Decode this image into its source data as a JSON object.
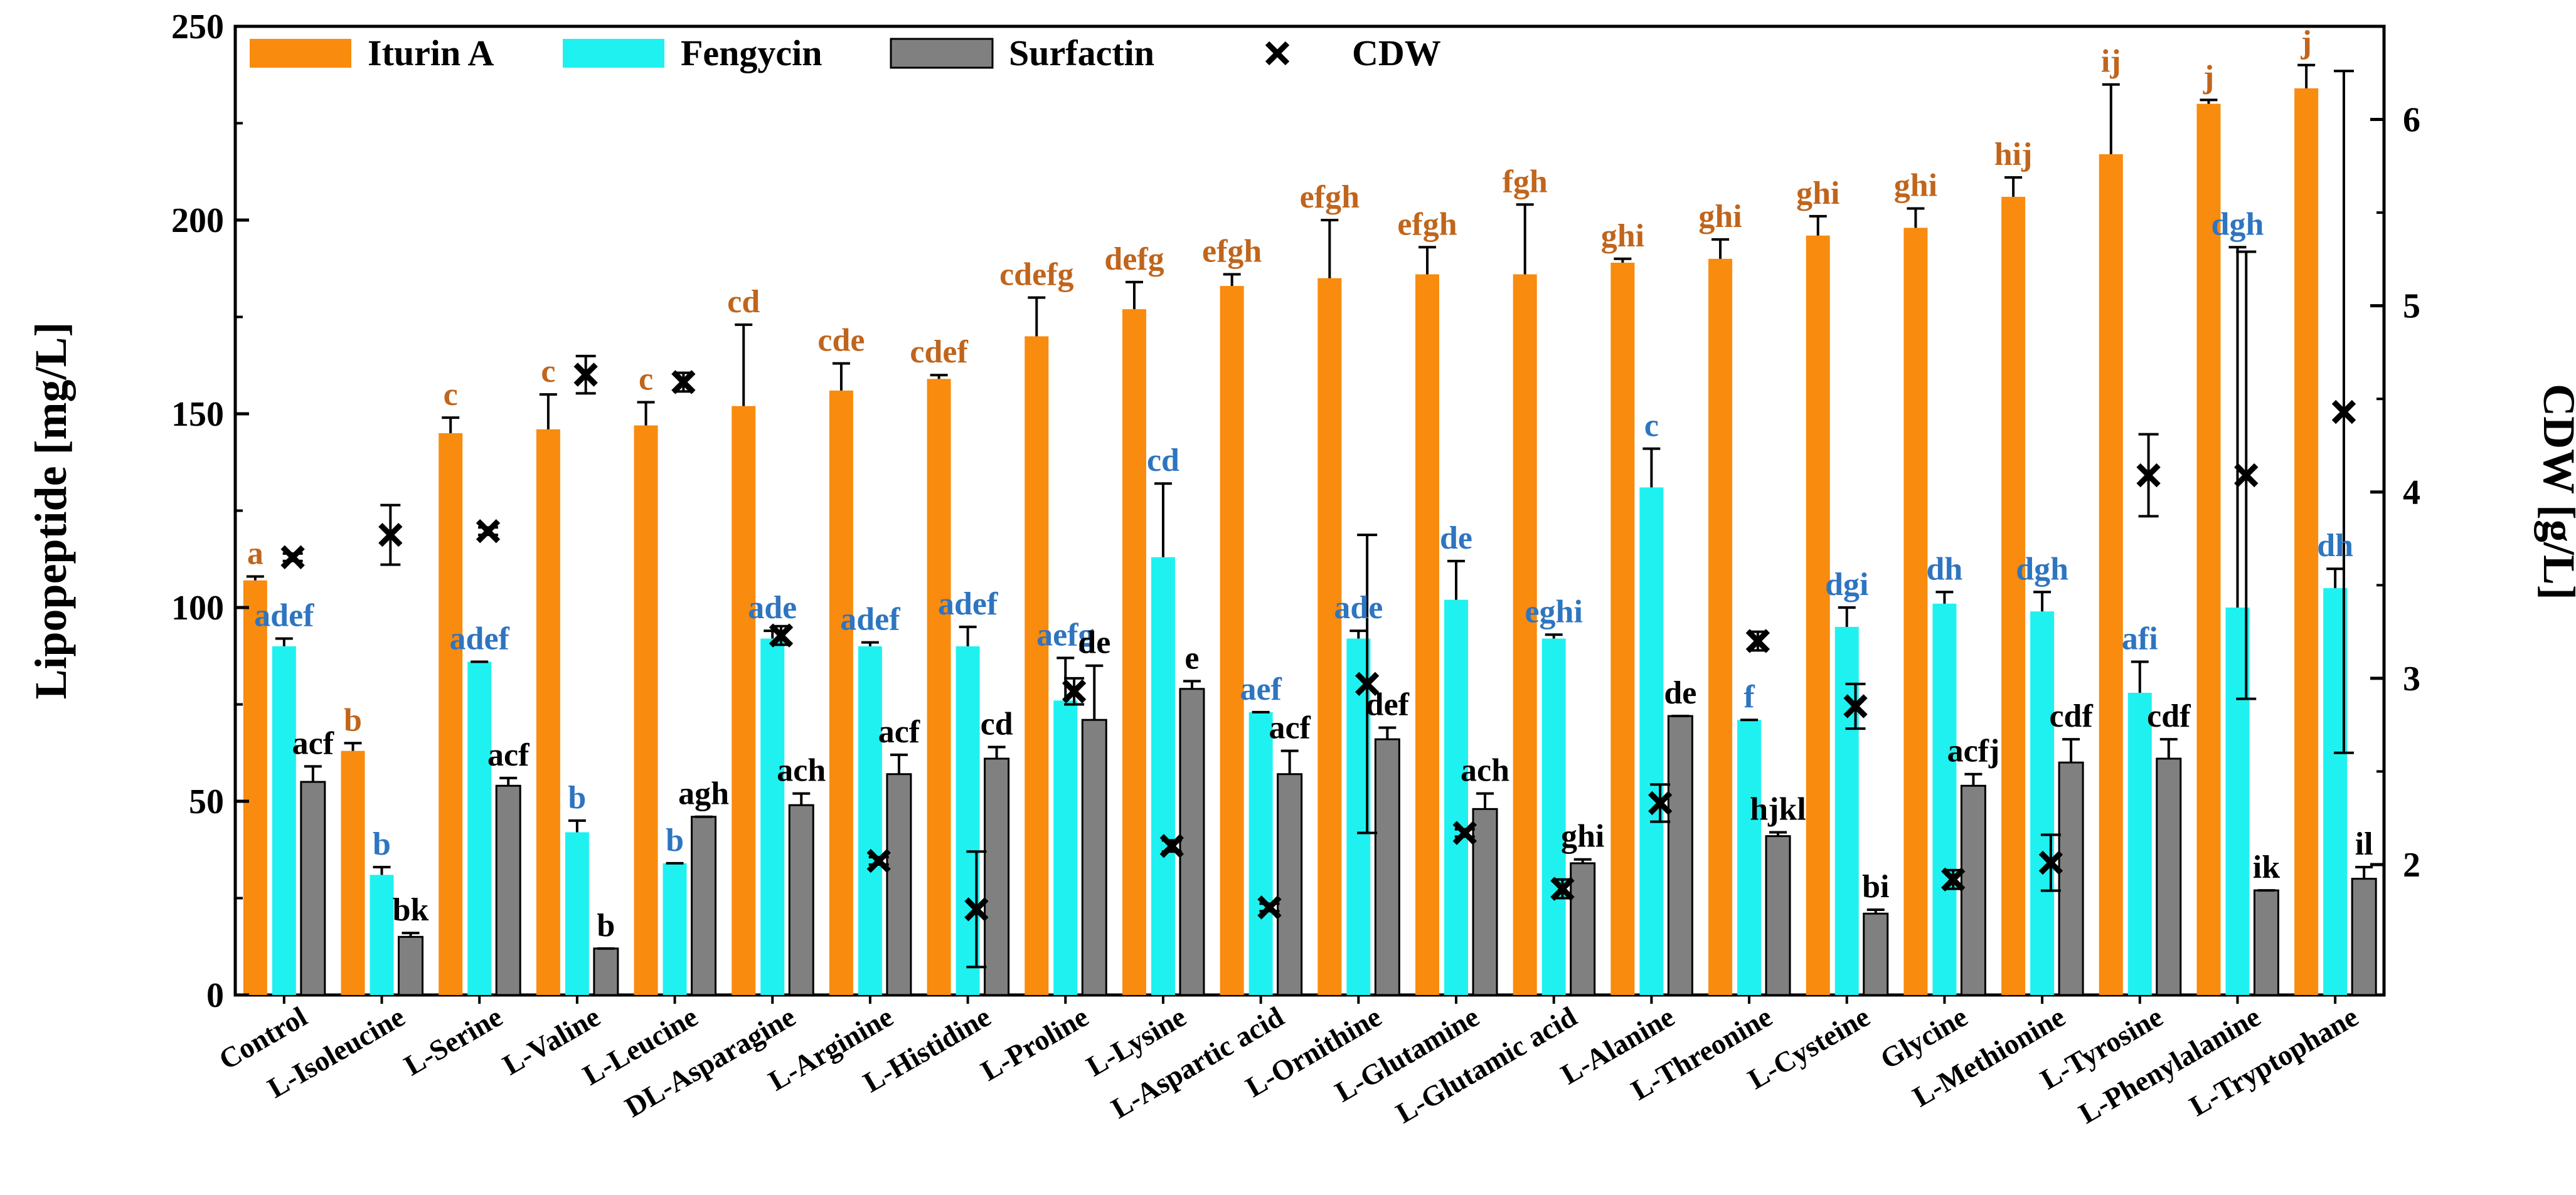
{
  "chart_data": {
    "type": "bar",
    "ylabel": "Lipopeptide [mg/L]",
    "y2label": "CDW [g/L]",
    "ylim": [
      0,
      250
    ],
    "y2lim": [
      1.3,
      6.5
    ],
    "yticks": [
      "0",
      "50",
      "100",
      "150",
      "200",
      "250"
    ],
    "y2ticks": [
      "2",
      "3",
      "4",
      "5",
      "6"
    ],
    "legend_position": "top",
    "categories": [
      "Control",
      "L-Isoleucine",
      "L-Serine",
      "L-Valine",
      "L-Leucine",
      "DL-Asparagine",
      "L-Arginine",
      "L-Histidine",
      "L-Proline",
      "L-Lysine",
      "L-Aspartic acid",
      "L-Ornithine",
      "L-Glutamine",
      "L-Glutamic acid",
      "L-Alanine",
      "L-Threonine",
      "L-Cysteine",
      "Glycine",
      "L-Methionine",
      "L-Tyrosine",
      "L-Phenylalanine",
      "L-Tryptophane"
    ],
    "series": [
      {
        "name": "Iturin A",
        "color": "#F98B0E",
        "label_color": "#C0651C",
        "values": [
          107,
          63,
          145,
          146,
          147,
          152,
          156,
          159,
          170,
          177,
          183,
          185,
          186,
          186,
          189,
          190,
          196,
          198,
          206,
          217,
          230,
          234
        ],
        "errors": [
          1,
          2,
          4,
          9,
          6,
          21,
          7,
          1,
          10,
          7,
          3,
          15,
          7,
          18,
          1,
          5,
          5,
          5,
          5,
          18,
          1,
          6
        ],
        "labels": [
          "a",
          "b",
          "c",
          "c",
          "c",
          "cd",
          "cde",
          "cdef",
          "cdefg",
          "defg",
          "efgh",
          "efgh",
          "efgh",
          "fgh",
          "ghi",
          "ghi",
          "ghi",
          "ghi",
          "hij",
          "ij",
          "j",
          "j"
        ]
      },
      {
        "name": "Fengycin",
        "color": "#1FF1F1",
        "label_color": "#2E75C0",
        "values": [
          90,
          31,
          86,
          42,
          34,
          92,
          90,
          90,
          76,
          113,
          73,
          92,
          102,
          92,
          131,
          71,
          95,
          101,
          99,
          78,
          100,
          105
        ],
        "errors": [
          2,
          2,
          0,
          3,
          0,
          2,
          1,
          5,
          11,
          19,
          0,
          2,
          10,
          1,
          10,
          0,
          5,
          3,
          5,
          8,
          93,
          5
        ],
        "labels": [
          "adef",
          "b",
          "adef",
          "b",
          "b",
          "ade",
          "adef",
          "adef",
          "aefg",
          "cd",
          "aef",
          "ade",
          "de",
          "eghi",
          "c",
          "f",
          "dgi",
          "dh",
          "dgh",
          "afi",
          "dgh",
          "dh"
        ]
      },
      {
        "name": "Surfactin",
        "color": "#808080",
        "label_color": "#000000",
        "values": [
          55,
          15,
          54,
          12,
          46,
          49,
          57,
          61,
          71,
          79,
          57,
          66,
          48,
          34,
          72,
          41,
          21,
          54,
          60,
          61,
          27,
          30
        ],
        "errors": [
          4,
          1,
          2,
          0,
          0,
          3,
          5,
          3,
          14,
          2,
          6,
          3,
          4,
          1,
          0,
          1,
          1,
          3,
          6,
          5,
          0,
          3
        ],
        "labels": [
          "acf",
          "bk",
          "acf",
          "b",
          "agh",
          "ach",
          "acf",
          "cd",
          "de",
          "e",
          "acf",
          "def",
          "ach",
          "ghi",
          "de",
          "hjkl",
          "bi",
          "acfj",
          "cdf",
          "cdf",
          "ik",
          "il"
        ]
      },
      {
        "name": "CDW",
        "axis": "right",
        "marker": "x",
        "values": [
          3.65,
          3.77,
          3.79,
          4.63,
          4.59,
          3.23,
          2.02,
          1.76,
          2.93,
          2.1,
          1.77,
          2.97,
          2.17,
          1.87,
          2.33,
          3.2,
          2.85,
          1.92,
          2.01,
          4.09,
          4.09,
          4.43
        ],
        "errors": [
          0.02,
          0.16,
          0.02,
          0.1,
          0.05,
          0.05,
          0.02,
          0.31,
          0.07,
          0.03,
          0.02,
          0.8,
          0.02,
          0.05,
          0.1,
          0.05,
          0.12,
          0.05,
          0.15,
          0.22,
          1.2,
          1.83
        ]
      }
    ]
  }
}
